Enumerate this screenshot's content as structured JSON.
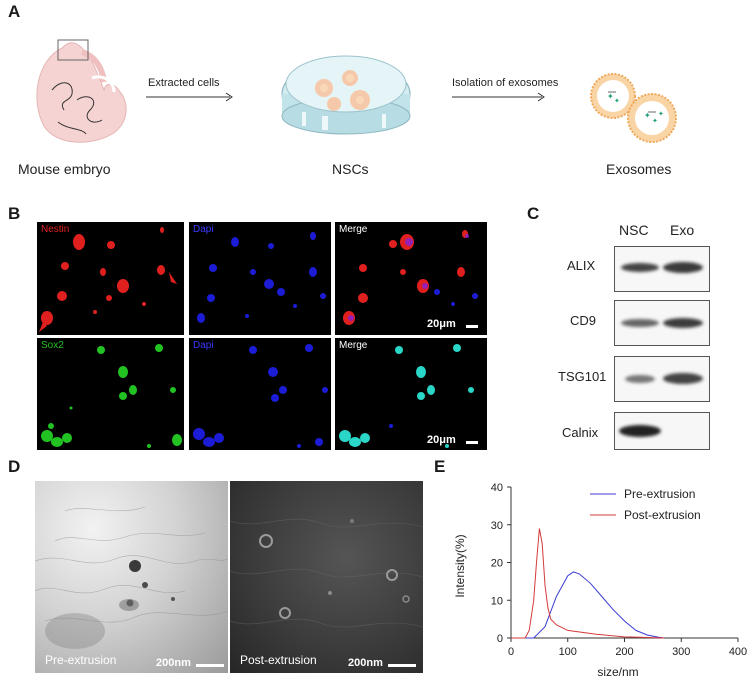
{
  "panels": {
    "A": "A",
    "B": "B",
    "C": "C",
    "D": "D",
    "E": "E"
  },
  "panel_a": {
    "mouse_label": "Mouse embryo",
    "arrow1_label": "Extracted cells",
    "dish_label": "NSCs",
    "arrow2_label": "Isolation of exosomes",
    "exosome_label": "Exosomes"
  },
  "panel_b": {
    "row1": [
      "Nestin",
      "Dapi",
      "Merge"
    ],
    "row2": [
      "Sox2",
      "Dapi",
      "Merge"
    ],
    "scale": "20μm",
    "colors": {
      "nestin": "#e0201e",
      "dapi": "#1c1cd6",
      "sox2": "#21c221",
      "merge2": "#2ad6c8"
    }
  },
  "panel_c": {
    "columns": [
      "NSC",
      "Exo"
    ],
    "proteins": [
      "ALIX",
      "CD9",
      "TSG101",
      "Calnix"
    ]
  },
  "panel_d": {
    "left_label": "Pre-extrusion",
    "right_label": "Post-extrusion",
    "scale": "200nm"
  },
  "chart_data": {
    "type": "line",
    "xlabel": "size/nm",
    "ylabel": "Intensity(%)",
    "xlim": [
      0,
      400
    ],
    "ylim": [
      0,
      40
    ],
    "xticks": [
      0,
      100,
      200,
      300,
      400
    ],
    "yticks": [
      0,
      10,
      20,
      30,
      40
    ],
    "legend_position": "top-right",
    "series": [
      {
        "name": "Pre-extrusion",
        "color": "#3b3bd4",
        "x": [
          0,
          40,
          60,
          80,
          100,
          110,
          120,
          140,
          160,
          180,
          200,
          220,
          240,
          260,
          270
        ],
        "y": [
          0,
          0,
          3,
          11,
          16.5,
          17.5,
          17,
          14.5,
          11,
          7.5,
          4.5,
          2,
          0.8,
          0.2,
          0
        ]
      },
      {
        "name": "Post-extrusion",
        "color": "#d43b3b",
        "x": [
          0,
          25,
          32,
          40,
          45,
          50,
          55,
          60,
          65,
          70,
          80,
          100,
          150,
          200,
          250,
          270
        ],
        "y": [
          0,
          0,
          2,
          10,
          20,
          29,
          25,
          14,
          8,
          5,
          3.5,
          2,
          1,
          0.3,
          0.1,
          0
        ]
      }
    ]
  }
}
